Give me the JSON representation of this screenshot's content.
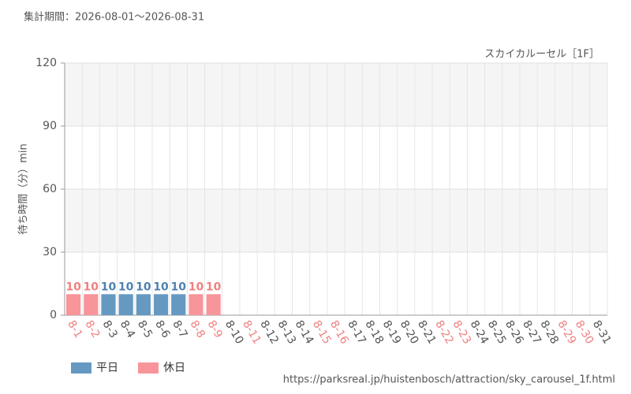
{
  "chart_data": {
    "type": "bar",
    "title": "集計期間：2026-08-01～2026-08-31",
    "subtitle": "スカイカルーセル［1F］",
    "y_label": "待ち時間（分）min",
    "source": "https://parksreal.jp/huistenbosch/attraction/sky_carousel_1f.html",
    "categories": [
      "8-1",
      "8-2",
      "8-3",
      "8-4",
      "8-5",
      "8-6",
      "8-7",
      "8-8",
      "8-9",
      "8-10",
      "8-11",
      "8-12",
      "8-13",
      "8-14",
      "8-15",
      "8-16",
      "8-17",
      "8-18",
      "8-19",
      "8-20",
      "8-21",
      "8-22",
      "8-23",
      "8-24",
      "8-25",
      "8-26",
      "8-27",
      "8-28",
      "8-29",
      "8-30",
      "8-31"
    ],
    "category_label_colors": [
      "#f08080",
      "#f08080",
      "#555",
      "#555",
      "#555",
      "#555",
      "#555",
      "#f08080",
      "#f08080",
      "#555",
      "#f08080",
      "#555",
      "#555",
      "#555",
      "#f08080",
      "#f08080",
      "#555",
      "#555",
      "#555",
      "#555",
      "#555",
      "#f08080",
      "#f08080",
      "#555",
      "#555",
      "#555",
      "#555",
      "#555",
      "#f08080",
      "#f08080",
      "#555"
    ],
    "series": [
      {
        "name": "平日",
        "color": "#6699c2",
        "label_color": "#4f81b0",
        "values": [
          null,
          null,
          10,
          10,
          10,
          10,
          10,
          null,
          null,
          null,
          null,
          null,
          null,
          null,
          null,
          null,
          null,
          null,
          null,
          null,
          null,
          null,
          null,
          null,
          null,
          null,
          null,
          null,
          null,
          null,
          null
        ]
      },
      {
        "name": "休日",
        "color": "#f7959a",
        "label_color": "#f08080",
        "values": [
          10,
          10,
          null,
          null,
          null,
          null,
          null,
          10,
          10,
          null,
          null,
          null,
          null,
          null,
          null,
          null,
          null,
          null,
          null,
          null,
          null,
          null,
          null,
          null,
          null,
          null,
          null,
          null,
          null,
          null,
          null
        ]
      }
    ],
    "stacked": true,
    "ylim": [
      0,
      120
    ],
    "yticks": [
      0,
      30,
      60,
      90,
      120
    ],
    "grid": true,
    "legend": "bottom-left"
  }
}
